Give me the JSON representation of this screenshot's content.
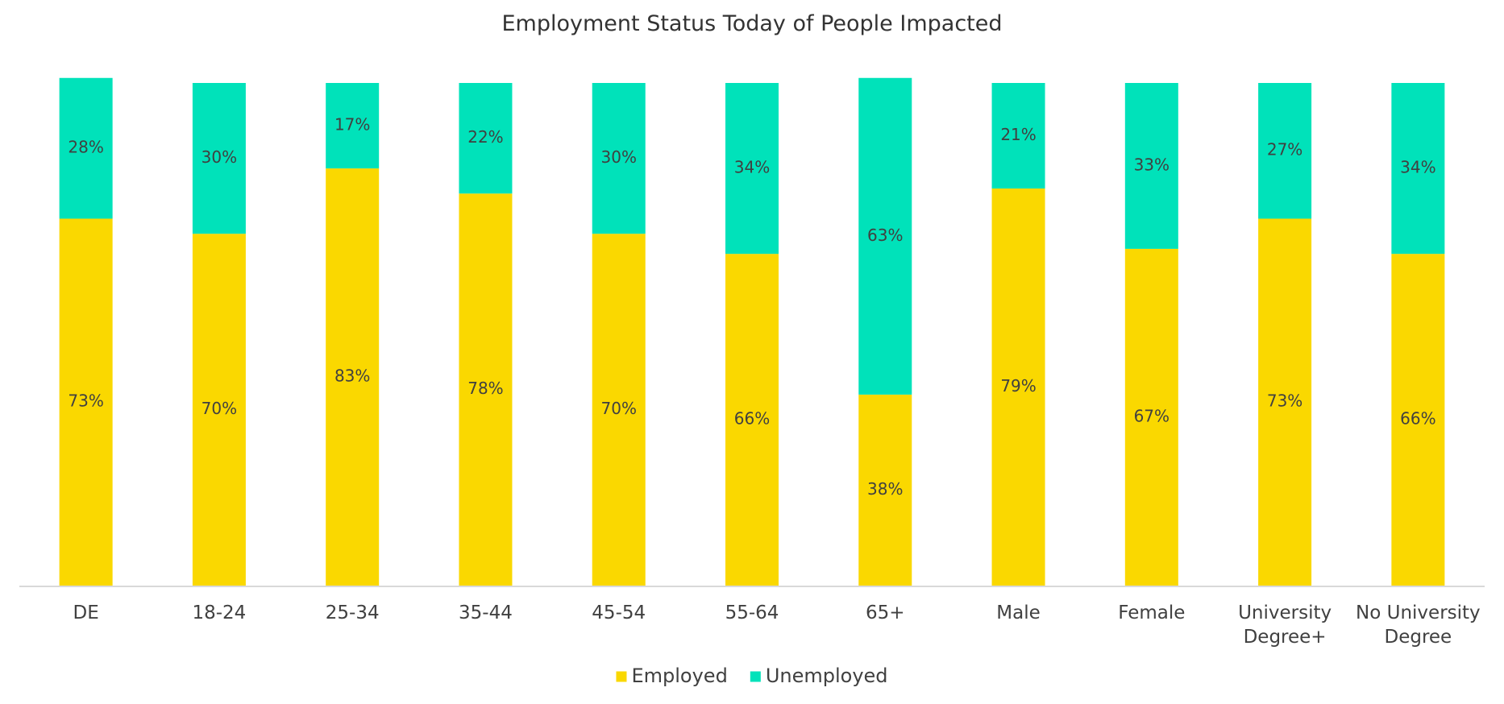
{
  "chart_data": {
    "type": "bar",
    "stacked": true,
    "title": "Employment Status Today of People Impacted",
    "categories": [
      "DE",
      "18-24",
      "25-34",
      "35-44",
      "45-54",
      "55-64",
      "65+",
      "Male",
      "Female",
      "University Degree+",
      "No University Degree"
    ],
    "series": [
      {
        "name": "Employed",
        "color": "#FAD800",
        "values": [
          73,
          70,
          83,
          78,
          70,
          66,
          38,
          79,
          67,
          73,
          66
        ],
        "labels": [
          "73%",
          "70%",
          "83%",
          "78%",
          "70%",
          "66%",
          "38%",
          "79%",
          "67%",
          "73%",
          "66%"
        ]
      },
      {
        "name": "Unemployed",
        "color": "#00E2BA",
        "values": [
          28,
          30,
          17,
          22,
          30,
          34,
          63,
          21,
          33,
          27,
          34
        ],
        "labels": [
          "28%",
          "30%",
          "17%",
          "22%",
          "30%",
          "34%",
          "63%",
          "21%",
          "33%",
          "27%",
          "34%"
        ]
      }
    ],
    "legend_position": "bottom",
    "grid": false,
    "ylim": [
      0,
      100
    ]
  }
}
